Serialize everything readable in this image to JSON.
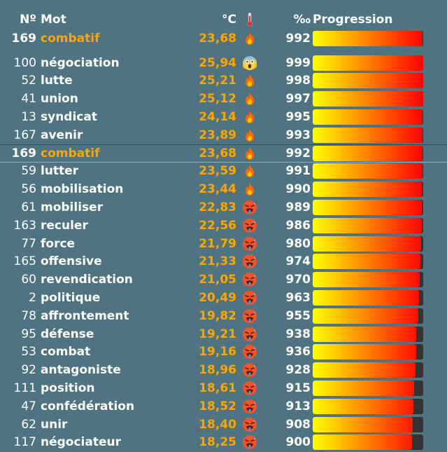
{
  "header": {
    "num": "Nº",
    "word": "Mot",
    "temp": "°C",
    "thermometer_icon": "thermometer-icon",
    "permil": "‰",
    "progression": "Progression"
  },
  "current": {
    "num": "169",
    "word": "combatif",
    "temp": "23,68",
    "emoji": "fire",
    "permil": "992",
    "progress": 99.2
  },
  "rows": [
    {
      "num": "100",
      "word": "négociation",
      "temp": "25,94",
      "emoji": "scream",
      "permil": "999",
      "progress": 99.9
    },
    {
      "num": "52",
      "word": "lutte",
      "temp": "25,21",
      "emoji": "fire",
      "permil": "998",
      "progress": 99.8
    },
    {
      "num": "41",
      "word": "union",
      "temp": "25,12",
      "emoji": "fire",
      "permil": "997",
      "progress": 99.7
    },
    {
      "num": "13",
      "word": "syndicat",
      "temp": "24,14",
      "emoji": "fire",
      "permil": "995",
      "progress": 99.5
    },
    {
      "num": "167",
      "word": "avenir",
      "temp": "23,89",
      "emoji": "fire",
      "permil": "993",
      "progress": 99.3
    },
    {
      "num": "169",
      "word": "combatif",
      "temp": "23,68",
      "emoji": "fire",
      "permil": "992",
      "progress": 99.2,
      "highlight": true
    },
    {
      "num": "59",
      "word": "lutter",
      "temp": "23,59",
      "emoji": "fire",
      "permil": "991",
      "progress": 99.1
    },
    {
      "num": "56",
      "word": "mobilisation",
      "temp": "23,44",
      "emoji": "fire",
      "permil": "990",
      "progress": 99.0
    },
    {
      "num": "61",
      "word": "mobiliser",
      "temp": "22,83",
      "emoji": "hot-face",
      "permil": "989",
      "progress": 98.9
    },
    {
      "num": "163",
      "word": "reculer",
      "temp": "22,56",
      "emoji": "hot-face",
      "permil": "986",
      "progress": 98.6
    },
    {
      "num": "77",
      "word": "force",
      "temp": "21,79",
      "emoji": "hot-face",
      "permil": "980",
      "progress": 98.0
    },
    {
      "num": "165",
      "word": "offensive",
      "temp": "21,33",
      "emoji": "hot-face",
      "permil": "974",
      "progress": 97.4
    },
    {
      "num": "60",
      "word": "revendication",
      "temp": "21,05",
      "emoji": "hot-face",
      "permil": "970",
      "progress": 97.0
    },
    {
      "num": "2",
      "word": "politique",
      "temp": "20,49",
      "emoji": "hot-face",
      "permil": "963",
      "progress": 96.3
    },
    {
      "num": "78",
      "word": "affrontement",
      "temp": "19,82",
      "emoji": "hot-face",
      "permil": "955",
      "progress": 95.5
    },
    {
      "num": "95",
      "word": "défense",
      "temp": "19,21",
      "emoji": "hot-face",
      "permil": "938",
      "progress": 93.8
    },
    {
      "num": "53",
      "word": "combat",
      "temp": "19,16",
      "emoji": "hot-face",
      "permil": "936",
      "progress": 93.6
    },
    {
      "num": "92",
      "word": "antagoniste",
      "temp": "18,96",
      "emoji": "hot-face",
      "permil": "928",
      "progress": 92.8
    },
    {
      "num": "111",
      "word": "position",
      "temp": "18,61",
      "emoji": "hot-face",
      "permil": "915",
      "progress": 91.5
    },
    {
      "num": "47",
      "word": "confédération",
      "temp": "18,52",
      "emoji": "hot-face",
      "permil": "913",
      "progress": 91.3
    },
    {
      "num": "62",
      "word": "unir",
      "temp": "18,40",
      "emoji": "hot-face",
      "permil": "908",
      "progress": 90.8
    },
    {
      "num": "117",
      "word": "négociateur",
      "temp": "18,25",
      "emoji": "hot-face",
      "permil": "900",
      "progress": 90.0
    }
  ],
  "colors": {
    "background": "#4f7380",
    "highlight_text": "#ffa500",
    "temp_text": "#ffa500",
    "bar_track": "#333333",
    "bar_start": "#ffff00",
    "bar_end": "#ff0000"
  }
}
